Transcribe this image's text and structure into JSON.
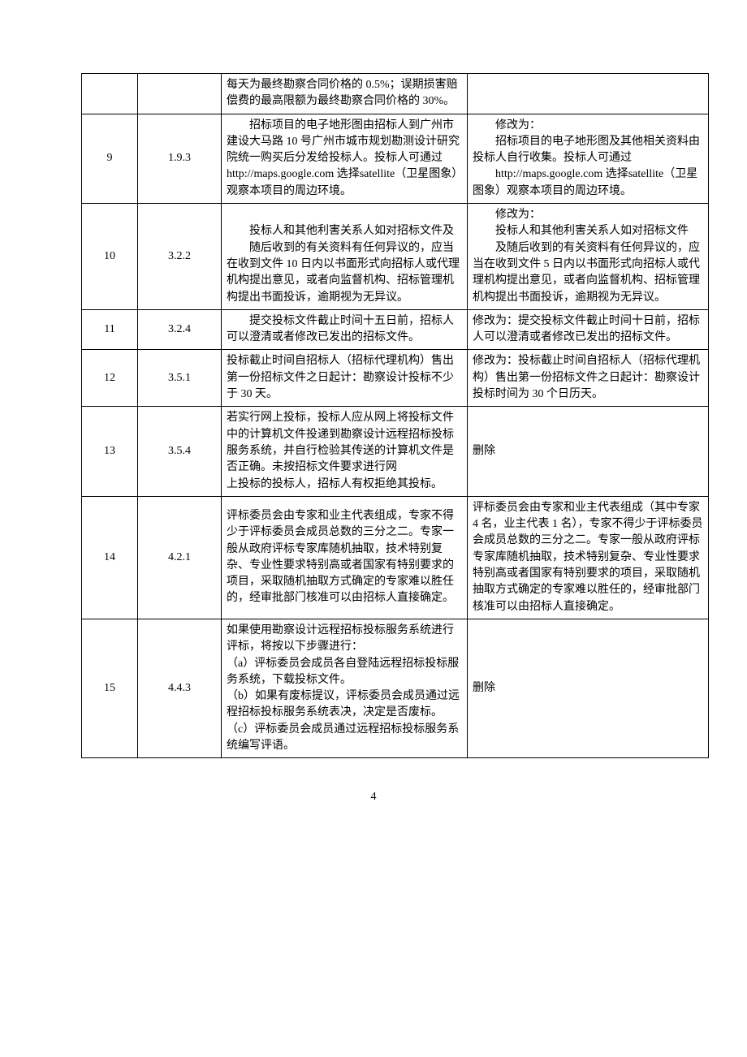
{
  "page_number": "4",
  "rows": [
    {
      "num": "",
      "sec": "",
      "orig": "每天为最终勘察合同价格的 0.5%；误期损害赔偿费的最高限额为最终勘察合同价格的 30%。",
      "mod": ""
    },
    {
      "num": "9",
      "sec": "1.9.3",
      "orig_indent1": "招标项目的电子地形图由招标人到广州市建设大马路 10 号广州市城市规划勘测设计研究院统一购买后分发给投标人。投标人可通过",
      "orig_rest": "http://maps.google.com 选择satellite（卫星图象）观察本项目的周边环境。",
      "mod_line1": "修改为：",
      "mod_indent1": "招标项目的电子地形图及其他相关资料由投标人自行收集。投标人可通过",
      "mod_rest": "　　http://maps.google.com 选择satellite（卫星图象）观察本项目的周边环境。"
    },
    {
      "num": "10",
      "sec": "3.2.2",
      "orig_indent1": "投标人和其他利害关系人如对招标文件及",
      "orig_indent2": "随后收到的有关资料有任何异议的，应当在收到文件 10 日内以书面形式向招标人或代理机构提出意见，或者向监督机构、招标管理机构提出书面投诉，逾期视为无异议。",
      "mod_line1": "修改为：",
      "mod_indent1": "投标人和其他利害关系人如对招标文件",
      "mod_indent2": "及随后收到的有关资料有任何异议的，应当在收到文件 5 日内以书面形式向招标人或代理机构提出意见，或者向监督机构、招标管理机构提出书面投诉，逾期视为无异议。"
    },
    {
      "num": "11",
      "sec": "3.2.4",
      "orig_indent1": "提交投标文件截止时间十五日前，招标人可以澄清或者修改已发出的招标文件。",
      "mod": "修改为：提交投标文件截止时间十日前，招标人可以澄清或者修改已发出的招标文件。"
    },
    {
      "num": "12",
      "sec": "3.5.1",
      "orig": "投标截止时间自招标人（招标代理机构）售出第一份招标文件之日起计：勘察设计投标不少于 30 天。",
      "mod": "修改为：投标截止时间自招标人（招标代理机构）售出第一份招标文件之日起计：勘察设计投标时间为 30 个日历天。"
    },
    {
      "num": "13",
      "sec": "3.5.4",
      "orig": "若实行网上投标，投标人应从网上将投标文件中的计算机文件投递到勘察设计远程招标投标服务系统，并自行检验其传送的计算机文件是否正确。未按招标文件要求进行网\n上投标的投标人，招标人有权拒绝其投标。",
      "mod_center": "删除"
    },
    {
      "num": "14",
      "sec": "4.2.1",
      "orig": "评标委员会由专家和业主代表组成，专家不得少于评标委员会成员总数的三分之二。专家一般从政府评标专家库随机抽取，技术特别复杂、专业性要求特别高或者国家有特别要求的项目，采取随机抽取方式确定的专家难以胜任的，经审批部门核准可以由招标人直接确定。",
      "mod": "评标委员会由专家和业主代表组成（其中专家 4 名，业主代表 1 名），专家不得少于评标委员会成员总数的三分之二。专家一般从政府评标专家库随机抽取，技术特别复杂、专业性要求特别高或者国家有特别要求的项目，采取随机抽取方式确定的专家难以胜任的，经审批部门核准可以由招标人直接确定。"
    },
    {
      "num": "15",
      "sec": "4.4.3",
      "orig": "如果使用勘察设计远程招标投标服务系统进行评标，将按以下步骤进行：\n（a）评标委员会成员各自登陆远程招标投标服务系统，下载投标文件。\n（b）如果有废标提议，评标委员会成员通过远程招标投标服务系统表决，决定是否废标。\n（c）评标委员会成员通过远程招标投标服务系统编写评语。",
      "mod_center": "删除"
    }
  ]
}
